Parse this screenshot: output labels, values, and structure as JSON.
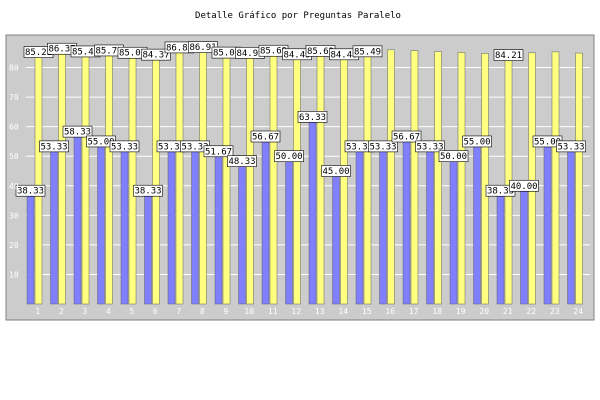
{
  "chart_data": {
    "type": "bar",
    "title": "Detalle Gráfico por Preguntas Paralelo",
    "xlabel": "",
    "ylabel": "",
    "ylim": [
      0,
      90
    ],
    "yticks": [
      10,
      20,
      30,
      40,
      50,
      60,
      70,
      80
    ],
    "grid": true,
    "categories": [
      "1",
      "2",
      "3",
      "4",
      "5",
      "6",
      "7",
      "8",
      "9",
      "10",
      "11",
      "12",
      "13",
      "14",
      "15",
      "16",
      "17",
      "18",
      "19",
      "20",
      "21",
      "22",
      "23",
      "24"
    ],
    "series": [
      {
        "color": "#8080ff",
        "values": [
          38.33,
          53.33,
          58.33,
          55.0,
          53.33,
          38.33,
          53.33,
          53.33,
          51.67,
          48.33,
          56.67,
          50.0,
          63.33,
          45.0,
          53.33,
          53.33,
          56.67,
          53.33,
          50.0,
          55.0,
          38.33,
          40.0,
          55.0,
          53.33
        ],
        "labels": [
          "38.33",
          "53.33",
          "58.33",
          "55.00",
          "53.33",
          "38.33",
          "53.33",
          "53.33",
          "51.67",
          "48.33",
          "56.67",
          "50.00",
          "63.33",
          "45.00",
          "53.33",
          "53.33",
          "56.67",
          "53.33",
          "50.00",
          "55.00",
          "38.33",
          "40.00",
          "55.00",
          "53.33"
        ]
      },
      {
        "color": "#ffff80",
        "values": [
          85.21,
          86.37,
          85.45,
          85.79,
          85.01,
          84.37,
          86.81,
          86.91,
          85.06,
          84.99,
          85.69,
          84.49,
          85.63,
          84.48,
          85.49,
          86.0,
          85.7,
          85.4,
          85.1,
          84.8,
          84.21,
          85.0,
          85.3,
          84.9
        ],
        "labels": [
          "85.21",
          "86.37",
          "85.45",
          "85.79",
          "85.01",
          "84.37",
          "86.81",
          "86.91",
          "85.06",
          "84.99",
          "85.69",
          "84.49",
          "85.63",
          "84.48",
          "85.49",
          "",
          "",
          "",
          "",
          "",
          "84.21",
          "",
          "",
          ""
        ]
      }
    ],
    "colors": {
      "background": "#cccccc",
      "frame": "#808080"
    }
  }
}
